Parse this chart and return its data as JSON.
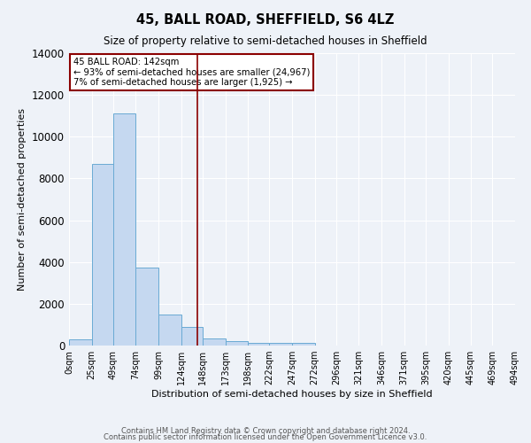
{
  "title": "45, BALL ROAD, SHEFFIELD, S6 4LZ",
  "subtitle": "Size of property relative to semi-detached houses in Sheffield",
  "xlabel": "Distribution of semi-detached houses by size in Sheffield",
  "ylabel": "Number of semi-detached properties",
  "bin_edges": [
    0,
    25,
    49,
    74,
    99,
    124,
    148,
    173,
    198,
    222,
    247,
    272,
    296,
    321,
    346,
    371,
    395,
    420,
    445,
    469,
    494
  ],
  "bar_heights": [
    300,
    8700,
    11100,
    3750,
    1500,
    900,
    350,
    200,
    120,
    120,
    120,
    0,
    0,
    0,
    0,
    0,
    0,
    0,
    0,
    0
  ],
  "bar_color": "#c5d8f0",
  "bar_edge_color": "#6aaad4",
  "property_size": 142,
  "vline_color": "#8b0000",
  "annotation_title": "45 BALL ROAD: 142sqm",
  "annotation_line1": "← 93% of semi-detached houses are smaller (24,967)",
  "annotation_line2": "7% of semi-detached houses are larger (1,925) →",
  "annotation_box_color": "#ffffff",
  "annotation_box_edge": "#8b0000",
  "ylim": [
    0,
    14000
  ],
  "yticks": [
    0,
    2000,
    4000,
    6000,
    8000,
    10000,
    12000,
    14000
  ],
  "xtick_labels": [
    "0sqm",
    "25sqm",
    "49sqm",
    "74sqm",
    "99sqm",
    "124sqm",
    "148sqm",
    "173sqm",
    "198sqm",
    "222sqm",
    "247sqm",
    "272sqm",
    "296sqm",
    "321sqm",
    "346sqm",
    "371sqm",
    "395sqm",
    "420sqm",
    "445sqm",
    "469sqm",
    "494sqm"
  ],
  "bg_color": "#eef2f8",
  "grid_color": "#ffffff",
  "footer_line1": "Contains HM Land Registry data © Crown copyright and database right 2024.",
  "footer_line2": "Contains public sector information licensed under the Open Government Licence v3.0."
}
